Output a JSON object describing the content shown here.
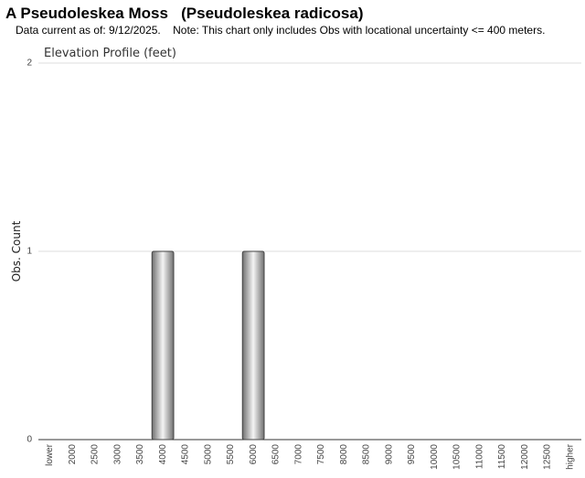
{
  "chart_data": {
    "type": "bar",
    "title": "A Pseudoleskea Moss   (Pseudoleskea radicosa)",
    "subtitle": "Data current as of: 9/12/2025.    Note: This chart only includes Obs with locational uncertainty <= 400 meters.",
    "chart_title": "Elevation Profile (feet)",
    "y_label": "Obs. Count",
    "categories": [
      "lower",
      "2000",
      "2500",
      "3000",
      "3500",
      "4000",
      "4500",
      "5000",
      "5500",
      "6000",
      "6500",
      "7000",
      "7500",
      "8000",
      "8500",
      "9000",
      "9500",
      "10000",
      "10500",
      "11000",
      "11500",
      "12000",
      "12500",
      "higher"
    ],
    "values": [
      0,
      0,
      0,
      0,
      0,
      1,
      0,
      0,
      0,
      1,
      0,
      0,
      0,
      0,
      0,
      0,
      0,
      0,
      0,
      0,
      0,
      0,
      0,
      0
    ],
    "color": "#707070",
    "ylim": [
      0,
      2
    ],
    "yticks": [
      0,
      1,
      2
    ],
    "grid": true
  }
}
